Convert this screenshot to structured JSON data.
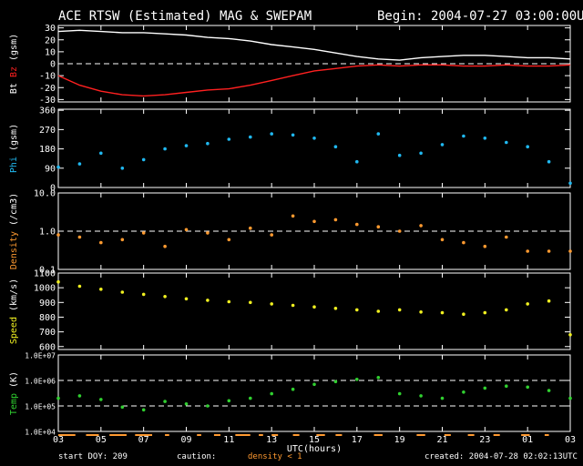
{
  "header": {
    "title": "ACE RTSW (Estimated) MAG & SWEPAM",
    "begin": "Begin: 2004-07-27 03:00:00UTC"
  },
  "footer": {
    "start_doy": "start DOY: 209",
    "caution": "caution:",
    "density_note": "density < 1",
    "created": "created: 2004-07-28 02:02:13UTC"
  },
  "colors": {
    "background": "#000000",
    "axes": "#ffffff",
    "bt": "#ffffff",
    "bz": "#ff2020",
    "phi": "#20b8f0",
    "density": "#ff9a30",
    "speed": "#f0f020",
    "temp": "#30d030",
    "caution_bar": "#ff9a30"
  },
  "chart_data": {
    "type": "scatter",
    "xlabel": "UTC(hours)",
    "x_ticks": [
      "03",
      "05",
      "07",
      "09",
      "11",
      "13",
      "15",
      "17",
      "19",
      "21",
      "23",
      "01",
      "03"
    ],
    "xlim": [
      0,
      24
    ],
    "caution_marks": [
      [
        0,
        0.8
      ],
      [
        1.3,
        1.9
      ],
      [
        2.4,
        3.2
      ],
      [
        3.6,
        4.4
      ],
      [
        5.0,
        5.2
      ],
      [
        6.5,
        6.7
      ],
      [
        7.3,
        7.6
      ],
      [
        8.3,
        9.0
      ],
      [
        9.4,
        9.6
      ],
      [
        10.0,
        10.3
      ],
      [
        11.0,
        11.3
      ],
      [
        12.1,
        12.5
      ],
      [
        13.0,
        13.3
      ],
      [
        14.8,
        15.2
      ],
      [
        16.8,
        17.2
      ],
      [
        18.1,
        18.4
      ],
      [
        19.2,
        19.5
      ],
      [
        20.4,
        20.7
      ],
      [
        21.7,
        22.1
      ],
      [
        22.8,
        23.0
      ]
    ],
    "panels": [
      {
        "key": "mag",
        "ylabel": [
          {
            "text": "Bt",
            "color": "#ffffff"
          },
          {
            "text": " Bz",
            "color": "#ff2020"
          },
          {
            "text": " (gsm)",
            "color": "#ffffff"
          }
        ],
        "yscale": "linear",
        "ylim": [
          -32,
          32
        ],
        "ticks": [
          {
            "v": 30,
            "l": "30"
          },
          {
            "v": 20,
            "l": "20"
          },
          {
            "v": 10,
            "l": "10"
          },
          {
            "v": 0,
            "l": "0"
          },
          {
            "v": -10,
            "l": "-10"
          },
          {
            "v": -20,
            "l": "-20"
          },
          {
            "v": -30,
            "l": "-30"
          }
        ],
        "dashed": [
          0
        ],
        "series": [
          {
            "name": "Bt",
            "color": "#ffffff",
            "style": "line",
            "x": [
              0,
              1,
              2,
              3,
              4,
              5,
              6,
              7,
              8,
              9,
              10,
              11,
              12,
              13,
              14,
              15,
              16,
              17,
              18,
              19,
              20,
              21,
              22,
              23,
              24
            ],
            "y": [
              27,
              28,
              27,
              26,
              26,
              25,
              24,
              22,
              21,
              19,
              16,
              14,
              12,
              9,
              6,
              4,
              3,
              5,
              6,
              7,
              7,
              6,
              5,
              5,
              4
            ]
          },
          {
            "name": "Bz",
            "color": "#ff2020",
            "style": "line",
            "x": [
              0,
              1,
              2,
              3,
              4,
              5,
              6,
              7,
              8,
              9,
              10,
              11,
              12,
              13,
              14,
              15,
              16,
              17,
              18,
              19,
              20,
              21,
              22,
              23,
              24
            ],
            "y": [
              -10,
              -18,
              -23,
              -26,
              -27,
              -26,
              -24,
              -22,
              -21,
              -18,
              -14,
              -10,
              -6,
              -4,
              -2,
              -1,
              -2,
              -1,
              -1,
              -2,
              -2,
              -1,
              -2,
              -2,
              -1
            ]
          }
        ]
      },
      {
        "key": "phi",
        "ylabel": [
          {
            "text": "Phi",
            "color": "#20b8f0"
          },
          {
            "text": " (gsm)",
            "color": "#ffffff"
          }
        ],
        "yscale": "linear",
        "ylim": [
          0,
          365
        ],
        "ticks": [
          {
            "v": 360,
            "l": "360"
          },
          {
            "v": 270,
            "l": "270"
          },
          {
            "v": 180,
            "l": "180"
          },
          {
            "v": 90,
            "l": "90"
          },
          {
            "v": 0,
            "l": "0"
          }
        ],
        "dashed": [],
        "series": [
          {
            "name": "Phi",
            "color": "#20b8f0",
            "style": "dots",
            "x": [
              0,
              1,
              2,
              3,
              4,
              5,
              6,
              7,
              8,
              9,
              10,
              11,
              12,
              13,
              14,
              15,
              16,
              17,
              18,
              19,
              20,
              21,
              22,
              23,
              24
            ],
            "y": [
              95,
              110,
              160,
              90,
              130,
              180,
              195,
              205,
              225,
              235,
              250,
              245,
              230,
              190,
              120,
              250,
              150,
              160,
              200,
              240,
              230,
              210,
              190,
              120,
              20
            ]
          }
        ]
      },
      {
        "key": "density",
        "ylabel": [
          {
            "text": "Density",
            "color": "#ff9a30"
          },
          {
            "text": " (/cm3)",
            "color": "#ffffff"
          }
        ],
        "yscale": "log",
        "ylim": [
          0.1,
          10
        ],
        "ticks": [
          {
            "v": 10,
            "l": "10.0"
          },
          {
            "v": 1,
            "l": "1.0"
          },
          {
            "v": 0.1,
            "l": "0.1"
          }
        ],
        "dashed": [
          1
        ],
        "series": [
          {
            "name": "Density",
            "color": "#ff9a30",
            "style": "dots",
            "x": [
              0,
              1,
              2,
              3,
              4,
              5,
              6,
              7,
              8,
              9,
              10,
              11,
              12,
              13,
              14,
              15,
              16,
              17,
              18,
              19,
              20,
              21,
              22,
              23,
              24
            ],
            "y": [
              0.8,
              0.7,
              0.5,
              0.6,
              0.9,
              0.4,
              1.1,
              0.9,
              0.6,
              1.2,
              0.8,
              2.5,
              1.8,
              2.0,
              1.5,
              1.3,
              1.0,
              1.4,
              0.6,
              0.5,
              0.4,
              0.7,
              0.3,
              0.3,
              0.3
            ]
          }
        ]
      },
      {
        "key": "speed",
        "ylabel": [
          {
            "text": "Speed",
            "color": "#f0f020"
          },
          {
            "text": " (km/s)",
            "color": "#ffffff"
          }
        ],
        "yscale": "linear",
        "ylim": [
          580,
          1100
        ],
        "ticks": [
          {
            "v": 1100,
            "l": "1100"
          },
          {
            "v": 1000,
            "l": "1000"
          },
          {
            "v": 900,
            "l": "900"
          },
          {
            "v": 800,
            "l": "800"
          },
          {
            "v": 700,
            "l": "700"
          },
          {
            "v": 600,
            "l": "600"
          }
        ],
        "dashed": [],
        "series": [
          {
            "name": "Speed",
            "color": "#f0f020",
            "style": "dots",
            "x": [
              0,
              1,
              2,
              3,
              4,
              5,
              6,
              7,
              8,
              9,
              10,
              11,
              12,
              13,
              14,
              15,
              16,
              17,
              18,
              19,
              20,
              21,
              22,
              23,
              24
            ],
            "y": [
              1040,
              1010,
              990,
              970,
              955,
              940,
              925,
              915,
              905,
              900,
              890,
              880,
              870,
              860,
              850,
              840,
              850,
              835,
              830,
              820,
              830,
              850,
              890,
              910,
              680
            ]
          }
        ]
      },
      {
        "key": "temp",
        "ylabel": [
          {
            "text": "Temp",
            "color": "#30d030"
          },
          {
            "text": " (K)",
            "color": "#ffffff"
          }
        ],
        "yscale": "log",
        "ylim": [
          10000,
          10000000
        ],
        "ticks": [
          {
            "v": 10000000,
            "l": "1.0E+07"
          },
          {
            "v": 1000000,
            "l": "1.0E+06"
          },
          {
            "v": 100000,
            "l": "1.0E+05"
          },
          {
            "v": 10000,
            "l": "1.0E+04"
          }
        ],
        "dashed": [
          1000000,
          100000
        ],
        "series": [
          {
            "name": "Temp",
            "color": "#30d030",
            "style": "dots",
            "x": [
              0,
              1,
              2,
              3,
              4,
              5,
              6,
              7,
              8,
              9,
              10,
              11,
              12,
              13,
              14,
              15,
              16,
              17,
              18,
              19,
              20,
              21,
              22,
              23,
              24
            ],
            "y": [
              200000,
              250000,
              180000,
              90000,
              70000,
              150000,
              120000,
              100000,
              160000,
              200000,
              300000,
              450000,
              700000,
              900000,
              1100000,
              1300000,
              300000,
              250000,
              200000,
              350000,
              500000,
              600000,
              550000,
              400000,
              200000
            ]
          }
        ]
      }
    ]
  }
}
